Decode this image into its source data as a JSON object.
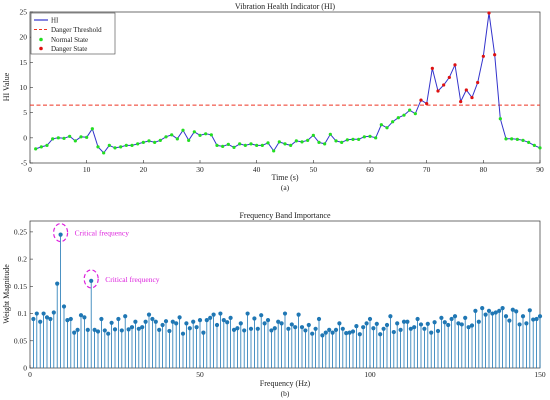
{
  "colors": {
    "hi_line": "#3333cc",
    "threshold": "#ee3322",
    "normal": "#22dd22",
    "danger": "#dd1111",
    "stem": "#1f77b4",
    "annotation": "#dd22dd",
    "axis": "#333333"
  },
  "chart_data": [
    {
      "type": "line",
      "title": "Vibration Health Indicator (HI)",
      "xlabel": "Time (s)",
      "ylabel": "HI Value",
      "sublabel": "(a)",
      "xlim": [
        0,
        90
      ],
      "ylim": [
        -5,
        25
      ],
      "xticks": [
        "0",
        "10",
        "20",
        "30",
        "40",
        "50",
        "60",
        "70",
        "80",
        "90"
      ],
      "yticks": [
        "-5",
        "0",
        "5",
        "10",
        "15",
        "20",
        "25"
      ],
      "threshold": 6.5,
      "legend_position": "top-left",
      "legend": {
        "hi": "HI",
        "threshold": "Danger Threshold",
        "normal": "Normal State",
        "danger": "Danger State"
      },
      "x": [
        1,
        2,
        3,
        4,
        5,
        6,
        7,
        8,
        9,
        10,
        11,
        12,
        13,
        14,
        15,
        16,
        17,
        18,
        19,
        20,
        21,
        22,
        23,
        24,
        25,
        26,
        27,
        28,
        29,
        30,
        31,
        32,
        33,
        34,
        35,
        36,
        37,
        38,
        39,
        40,
        41,
        42,
        43,
        44,
        45,
        46,
        47,
        48,
        49,
        50,
        51,
        52,
        53,
        54,
        55,
        56,
        57,
        58,
        59,
        60,
        61,
        62,
        63,
        64,
        65,
        66,
        67,
        68,
        69,
        70,
        71,
        72,
        73,
        74,
        75,
        76,
        77,
        78,
        79,
        80,
        81,
        82,
        83,
        84,
        85,
        86,
        87,
        88,
        89,
        90
      ],
      "y": [
        -2.2,
        -1.8,
        -1.5,
        -0.2,
        0.0,
        -0.1,
        0.3,
        -0.6,
        0.2,
        0.1,
        1.8,
        -1.8,
        -3.0,
        -1.5,
        -2.0,
        -1.8,
        -1.5,
        -1.5,
        -1.2,
        -0.9,
        -0.6,
        -0.9,
        -0.5,
        0.2,
        0.6,
        -0.2,
        1.5,
        -0.5,
        1.2,
        0.5,
        0.8,
        0.6,
        -1.5,
        -1.7,
        -1.3,
        -1.9,
        -1.2,
        -1.5,
        -1.2,
        -1.5,
        -1.5,
        -1.0,
        -2.6,
        -0.8,
        -1.2,
        -1.5,
        -0.6,
        -0.8,
        -0.5,
        0.5,
        -0.9,
        -1.2,
        0.7,
        -0.6,
        -0.9,
        -0.4,
        -0.3,
        -0.3,
        0.2,
        0.3,
        0.0,
        2.6,
        2.0,
        3.2,
        4.0,
        4.5,
        5.5,
        4.8,
        7.5,
        6.8,
        13.8,
        9.3,
        10.5,
        12.0,
        14.5,
        7.2,
        9.5,
        8.0,
        11.0,
        16.2,
        24.8,
        16.5,
        3.8,
        -0.2,
        -0.2,
        -0.3,
        -0.5,
        -0.9,
        -1.5,
        -2.0
      ]
    },
    {
      "type": "stem",
      "title": "Frequency Band Importance",
      "xlabel": "Frequency (Hz)",
      "ylabel": "Weight Magnitude",
      "sublabel": "(b)",
      "xlim": [
        0,
        150
      ],
      "ylim": [
        0,
        0.27
      ],
      "xticks": [
        "0",
        "50",
        "100",
        "150"
      ],
      "yticks": [
        "0",
        "0.05",
        "0.1",
        "0.15",
        "0.2",
        "0.25"
      ],
      "annotations": [
        {
          "text": "Critical frequency",
          "x": 9,
          "y": 0.245
        },
        {
          "text": "Critical frequency",
          "x": 18,
          "y": 0.16
        }
      ],
      "x": [
        1,
        2,
        3,
        4,
        5,
        6,
        7,
        8,
        9,
        10,
        11,
        12,
        13,
        14,
        15,
        16,
        17,
        18,
        19,
        20,
        21,
        22,
        23,
        24,
        25,
        26,
        27,
        28,
        29,
        30,
        31,
        32,
        33,
        34,
        35,
        36,
        37,
        38,
        39,
        40,
        41,
        42,
        43,
        44,
        45,
        46,
        47,
        48,
        49,
        50,
        51,
        52,
        53,
        54,
        55,
        56,
        57,
        58,
        59,
        60,
        61,
        62,
        63,
        64,
        65,
        66,
        67,
        68,
        69,
        70,
        71,
        72,
        73,
        74,
        75,
        76,
        77,
        78,
        79,
        80,
        81,
        82,
        83,
        84,
        85,
        86,
        87,
        88,
        89,
        90,
        91,
        92,
        93,
        94,
        95,
        96,
        97,
        98,
        99,
        100,
        101,
        102,
        103,
        104,
        105,
        106,
        107,
        108,
        109,
        110,
        111,
        112,
        113,
        114,
        115,
        116,
        117,
        118,
        119,
        120,
        121,
        122,
        123,
        124,
        125,
        126,
        127,
        128,
        129,
        130,
        131,
        132,
        133,
        134,
        135,
        136,
        137,
        138,
        139,
        140,
        141,
        142,
        143,
        144,
        145,
        146,
        147,
        148,
        149,
        150
      ],
      "y": [
        0.09,
        0.1,
        0.085,
        0.1,
        0.093,
        0.09,
        0.102,
        0.155,
        0.245,
        0.113,
        0.088,
        0.09,
        0.065,
        0.07,
        0.097,
        0.093,
        0.07,
        0.16,
        0.07,
        0.067,
        0.09,
        0.069,
        0.063,
        0.083,
        0.071,
        0.09,
        0.069,
        0.095,
        0.071,
        0.075,
        0.085,
        0.072,
        0.075,
        0.085,
        0.098,
        0.09,
        0.085,
        0.07,
        0.079,
        0.086,
        0.068,
        0.085,
        0.082,
        0.093,
        0.063,
        0.082,
        0.073,
        0.085,
        0.075,
        0.088,
        0.065,
        0.088,
        0.092,
        0.098,
        0.079,
        0.1,
        0.088,
        0.084,
        0.092,
        0.07,
        0.073,
        0.082,
        0.069,
        0.1,
        0.072,
        0.091,
        0.072,
        0.097,
        0.082,
        0.088,
        0.069,
        0.073,
        0.085,
        0.082,
        0.1,
        0.072,
        0.08,
        0.075,
        0.098,
        0.075,
        0.069,
        0.079,
        0.063,
        0.072,
        0.09,
        0.06,
        0.065,
        0.07,
        0.065,
        0.07,
        0.082,
        0.072,
        0.064,
        0.065,
        0.067,
        0.077,
        0.062,
        0.075,
        0.082,
        0.09,
        0.073,
        0.081,
        0.062,
        0.072,
        0.079,
        0.095,
        0.066,
        0.082,
        0.07,
        0.085,
        0.085,
        0.072,
        0.075,
        0.09,
        0.08,
        0.072,
        0.081,
        0.065,
        0.084,
        0.068,
        0.092,
        0.084,
        0.079,
        0.09,
        0.095,
        0.082,
        0.08,
        0.092,
        0.075,
        0.078,
        0.105,
        0.085,
        0.11,
        0.098,
        0.105,
        0.1,
        0.102,
        0.105,
        0.11,
        0.095,
        0.087,
        0.107,
        0.104,
        0.08,
        0.095,
        0.082,
        0.106,
        0.089,
        0.09,
        0.095
      ]
    }
  ]
}
